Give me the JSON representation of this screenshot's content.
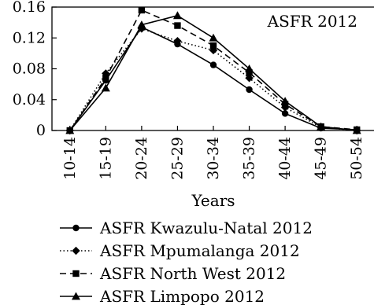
{
  "chart_data": {
    "type": "line",
    "title": "ASFR 2012",
    "xlabel": "Years",
    "ylabel": "",
    "categories": [
      "10-14",
      "15-19",
      "20-24",
      "25-29",
      "30-34",
      "35-39",
      "40-44",
      "45-49",
      "50-54"
    ],
    "ylim": [
      0,
      0.16
    ],
    "yticks": [
      "0",
      "0.04",
      "0.08",
      "0.12",
      "0.16"
    ],
    "legend_position": "bottom",
    "grid": false,
    "series": [
      {
        "name": "ASFR Kwazulu-Natal 2012",
        "values": [
          0.0,
          0.065,
          0.134,
          0.112,
          0.085,
          0.053,
          0.022,
          0.003,
          0.001
        ],
        "line_style": "solid",
        "marker": "circle"
      },
      {
        "name": "ASFR Mpumalanga 2012",
        "values": [
          0.0,
          0.074,
          0.132,
          0.116,
          0.104,
          0.068,
          0.03,
          0.004,
          0.0
        ],
        "line_style": "dotted",
        "marker": "diamond"
      },
      {
        "name": "ASFR North West 2012",
        "values": [
          0.0,
          0.068,
          0.156,
          0.136,
          0.11,
          0.075,
          0.034,
          0.005,
          0.001
        ],
        "line_style": "dashed",
        "marker": "square"
      },
      {
        "name": "ASFR Limpopo 2012",
        "values": [
          0.0,
          0.055,
          0.137,
          0.149,
          0.12,
          0.08,
          0.038,
          0.005,
          0.0
        ],
        "line_style": "solid",
        "marker": "triangle"
      }
    ]
  }
}
